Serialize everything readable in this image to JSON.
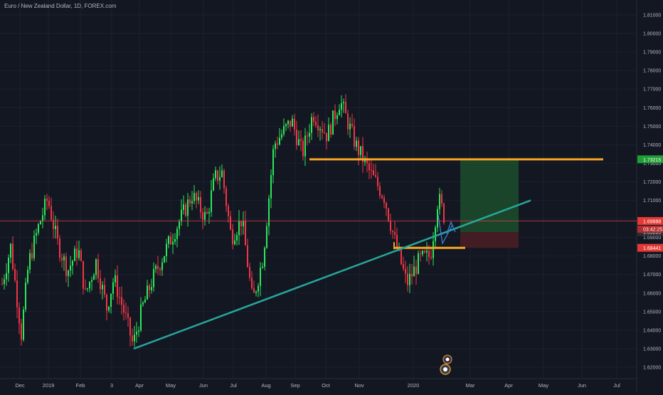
{
  "header": {
    "title": "Euro / New Zealand Dollar, 1D, FOREX.com"
  },
  "colors": {
    "background": "#131722",
    "up": "#2ee65a",
    "down": "#f23645",
    "trendline": "#26a69a",
    "level": "#f5a623",
    "price_line": "#e04040",
    "target_zone": "#1d4d2c",
    "stop_zone": "#4a1d24",
    "arrow": "#3d7fd6"
  },
  "chart_data": {
    "type": "candlestick",
    "symbol": "EURNZD",
    "timeframe": "1D",
    "x_ticks": [
      "Dec",
      "2019",
      "Feb",
      "3",
      "Apr",
      "May",
      "Jun",
      "Jul",
      "Aug",
      "Sep",
      "Oct",
      "Nov",
      "2020",
      "Mar",
      "Apr",
      "May",
      "Jun",
      "Jul"
    ],
    "y_ticks": [
      "1.81000",
      "1.80000",
      "1.79000",
      "1.78000",
      "1.77000",
      "1.76000",
      "1.75000",
      "1.74000",
      "1.73000",
      "1.72000",
      "1.71000",
      "1.70000",
      "1.69000",
      "1.68000",
      "1.67000",
      "1.66000",
      "1.65000",
      "1.64000",
      "1.63000",
      "1.62000"
    ],
    "ylim": [
      1.615,
      1.815
    ],
    "price_path": [
      [
        0,
        1.66
      ],
      [
        15,
        1.685
      ],
      [
        30,
        1.638
      ],
      [
        40,
        1.676
      ],
      [
        55,
        1.697
      ],
      [
        67,
        1.711
      ],
      [
        80,
        1.688
      ],
      [
        95,
        1.672
      ],
      [
        110,
        1.684
      ],
      [
        120,
        1.659
      ],
      [
        135,
        1.677
      ],
      [
        150,
        1.652
      ],
      [
        160,
        1.668
      ],
      [
        175,
        1.649
      ],
      [
        187,
        1.632
      ],
      [
        200,
        1.652
      ],
      [
        215,
        1.668
      ],
      [
        235,
        1.685
      ],
      [
        250,
        1.697
      ],
      [
        270,
        1.713
      ],
      [
        290,
        1.7
      ],
      [
        302,
        1.722
      ],
      [
        312,
        1.725
      ],
      [
        325,
        1.69
      ],
      [
        340,
        1.7
      ],
      [
        355,
        1.655
      ],
      [
        370,
        1.68
      ],
      [
        385,
        1.74
      ],
      [
        410,
        1.753
      ],
      [
        425,
        1.735
      ],
      [
        440,
        1.757
      ],
      [
        460,
        1.745
      ],
      [
        478,
        1.764
      ],
      [
        500,
        1.74
      ],
      [
        520,
        1.725
      ],
      [
        540,
        1.712
      ],
      [
        555,
        1.688
      ],
      [
        572,
        1.665
      ],
      [
        590,
        1.678
      ],
      [
        605,
        1.68
      ],
      [
        616,
        1.712
      ],
      [
        630,
        1.694
      ]
    ],
    "levels": [
      {
        "name": "resistance",
        "value": 1.73215,
        "label": "1.73215"
      },
      {
        "name": "support",
        "value": 1.68441,
        "label": "1.68441"
      }
    ],
    "trendline": {
      "from": {
        "x": "Apr",
        "y": 1.63
      },
      "to": {
        "x": "Apr",
        "y": 1.71
      }
    },
    "current_price": {
      "value": 1.69888,
      "label": "1.69888",
      "countdown": "03:42:25"
    },
    "entry": {
      "value": 1.69289,
      "label": "1.69289"
    },
    "position": {
      "type": "long",
      "entry": 1.69289,
      "target": 1.73215,
      "stop": 1.68441
    }
  }
}
